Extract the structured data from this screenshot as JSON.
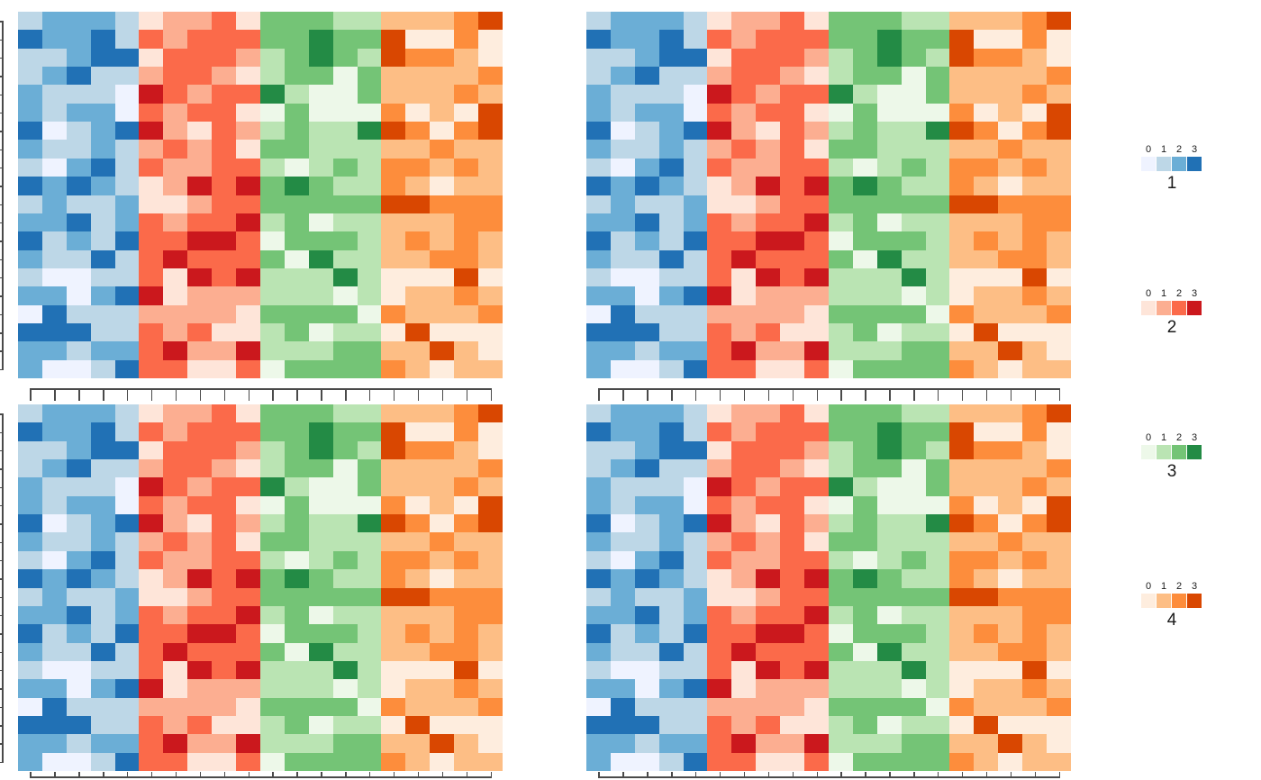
{
  "chart_data": {
    "type": "heatmap",
    "title": "",
    "description": "Four identical 20x20 heatmap panels arranged in a 2x2 grid. Columns are split into 4 blocks of 5 columns, each block using its own 4-step sequential palette (Blues, Reds, Greens, Oranges) mapping discrete values 0-3. Flat comb-shaped column dendrograms appear above the bottom panels and (clipped) below them; clipped row dendrogram lines appear at the far left edge.",
    "rows": 20,
    "cols": 20,
    "values_domain": [
      0,
      1,
      2,
      3
    ],
    "col_blocks": [
      {
        "name": "1",
        "palette": [
          "#EFF3FF",
          "#BDD7E7",
          "#6BAED6",
          "#2171B5"
        ]
      },
      {
        "name": "2",
        "palette": [
          "#FEE5D9",
          "#FCAE91",
          "#FB6A4A",
          "#CB181D"
        ]
      },
      {
        "name": "3",
        "palette": [
          "#EDF8E9",
          "#BAE4B3",
          "#74C476",
          "#238B45"
        ]
      },
      {
        "name": "4",
        "palette": [
          "#FEEDDE",
          "#FDBE85",
          "#FD8D3C",
          "#D94701"
        ]
      }
    ],
    "matrix": [
      [
        1,
        2,
        2,
        2,
        1,
        0,
        1,
        1,
        2,
        0,
        2,
        2,
        2,
        1,
        1,
        1,
        1,
        1,
        2,
        3
      ],
      [
        3,
        2,
        2,
        3,
        1,
        2,
        1,
        2,
        2,
        2,
        2,
        2,
        3,
        2,
        2,
        3,
        0,
        0,
        2,
        0
      ],
      [
        1,
        1,
        2,
        3,
        3,
        0,
        2,
        2,
        2,
        1,
        1,
        2,
        3,
        2,
        1,
        3,
        2,
        2,
        1,
        0
      ],
      [
        1,
        2,
        3,
        1,
        1,
        1,
        2,
        2,
        1,
        0,
        1,
        2,
        2,
        0,
        2,
        1,
        1,
        1,
        1,
        2
      ],
      [
        2,
        1,
        1,
        1,
        0,
        3,
        2,
        1,
        2,
        2,
        3,
        1,
        0,
        0,
        2,
        1,
        1,
        1,
        2,
        1
      ],
      [
        2,
        1,
        2,
        2,
        0,
        2,
        1,
        2,
        2,
        0,
        0,
        2,
        0,
        0,
        0,
        2,
        0,
        1,
        0,
        3
      ],
      [
        3,
        0,
        1,
        2,
        3,
        3,
        1,
        0,
        2,
        1,
        1,
        2,
        1,
        1,
        3,
        3,
        2,
        0,
        2,
        3
      ],
      [
        2,
        1,
        1,
        2,
        1,
        1,
        2,
        1,
        2,
        0,
        2,
        2,
        1,
        1,
        1,
        1,
        1,
        2,
        1,
        1
      ],
      [
        1,
        0,
        2,
        3,
        1,
        2,
        1,
        1,
        2,
        2,
        1,
        0,
        1,
        2,
        1,
        2,
        2,
        1,
        2,
        1
      ],
      [
        3,
        2,
        3,
        2,
        1,
        0,
        1,
        3,
        2,
        3,
        2,
        3,
        2,
        1,
        1,
        2,
        1,
        0,
        1,
        1
      ],
      [
        1,
        2,
        1,
        1,
        2,
        0,
        0,
        1,
        2,
        2,
        2,
        2,
        2,
        2,
        2,
        3,
        3,
        2,
        2,
        2
      ],
      [
        2,
        2,
        3,
        1,
        2,
        2,
        1,
        2,
        2,
        3,
        1,
        2,
        0,
        1,
        1,
        1,
        1,
        1,
        2,
        2
      ],
      [
        3,
        1,
        2,
        1,
        3,
        2,
        2,
        3,
        3,
        2,
        0,
        2,
        2,
        2,
        1,
        1,
        2,
        1,
        2,
        1
      ],
      [
        2,
        1,
        1,
        3,
        1,
        2,
        3,
        2,
        2,
        2,
        2,
        0,
        3,
        1,
        1,
        1,
        1,
        2,
        2,
        1
      ],
      [
        1,
        0,
        0,
        1,
        1,
        2,
        0,
        3,
        2,
        3,
        1,
        1,
        1,
        3,
        1,
        0,
        0,
        0,
        3,
        0
      ],
      [
        2,
        2,
        0,
        2,
        3,
        3,
        0,
        1,
        1,
        1,
        1,
        1,
        1,
        0,
        1,
        0,
        1,
        1,
        2,
        1
      ],
      [
        0,
        3,
        1,
        1,
        1,
        1,
        1,
        1,
        1,
        0,
        2,
        2,
        2,
        2,
        0,
        2,
        1,
        1,
        1,
        2
      ],
      [
        3,
        3,
        3,
        1,
        1,
        2,
        1,
        2,
        0,
        0,
        1,
        2,
        0,
        1,
        1,
        0,
        3,
        0,
        0,
        0
      ],
      [
        2,
        2,
        1,
        2,
        2,
        2,
        3,
        1,
        1,
        3,
        1,
        1,
        1,
        2,
        2,
        1,
        1,
        3,
        1,
        0
      ],
      [
        2,
        0,
        0,
        1,
        3,
        2,
        2,
        0,
        0,
        2,
        0,
        2,
        2,
        2,
        2,
        2,
        1,
        0,
        1,
        1
      ]
    ],
    "panels": [
      {
        "id": "top-left"
      },
      {
        "id": "top-right"
      },
      {
        "id": "bottom-left"
      },
      {
        "id": "bottom-right"
      }
    ],
    "legend_position": "right",
    "legends": [
      {
        "title": "1",
        "labels": [
          "0",
          "1",
          "2",
          "3"
        ],
        "colors": [
          "#EFF3FF",
          "#BDD7E7",
          "#6BAED6",
          "#2171B5"
        ]
      },
      {
        "title": "2",
        "labels": [
          "0",
          "1",
          "2",
          "3"
        ],
        "colors": [
          "#FEE5D9",
          "#FCAE91",
          "#FB6A4A",
          "#CB181D"
        ]
      },
      {
        "title": "3",
        "labels": [
          "0",
          "1",
          "2",
          "3"
        ],
        "colors": [
          "#EDF8E9",
          "#BAE4B3",
          "#74C476",
          "#238B45"
        ]
      },
      {
        "title": "4",
        "labels": [
          "0",
          "1",
          "2",
          "3"
        ],
        "colors": [
          "#FEEDDE",
          "#FDBE85",
          "#FD8D3C",
          "#D94701"
        ]
      }
    ],
    "dendrogram_color": "#4a4a4a"
  }
}
